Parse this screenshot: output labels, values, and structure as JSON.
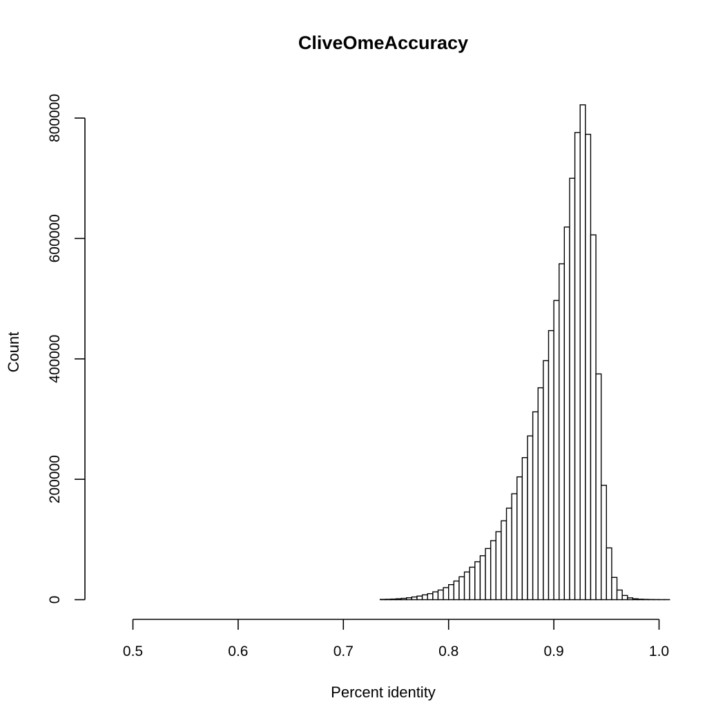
{
  "chart_data": {
    "type": "bar",
    "title": "CliveOmeAccuracy",
    "xlabel": "Percent identity",
    "ylabel": "Count",
    "xlim": [
      0.475,
      1.0
    ],
    "ylim": [
      0,
      820000
    ],
    "x_ticks": [
      0.5,
      0.6,
      0.7,
      0.8,
      0.9,
      1.0
    ],
    "x_tick_labels": [
      "0.5",
      "0.6",
      "0.7",
      "0.8",
      "0.9",
      "1.0"
    ],
    "y_ticks": [
      0,
      200000,
      400000,
      600000,
      800000
    ],
    "y_tick_labels": [
      "0",
      "200000",
      "400000",
      "600000",
      "800000"
    ],
    "bin_width": 0.005,
    "bin_start": 0.475,
    "values": [
      0,
      0,
      0,
      0,
      0,
      0,
      0,
      0,
      0,
      0,
      0,
      0,
      0,
      0,
      0,
      0,
      0,
      0,
      0,
      0,
      0,
      0,
      0,
      0,
      0,
      0,
      0,
      0,
      0,
      0,
      0,
      0,
      0,
      0,
      0,
      0,
      0,
      0,
      0,
      0,
      0,
      0,
      0,
      0,
      0,
      0,
      0,
      0,
      0,
      0,
      0,
      0,
      500,
      700,
      1000,
      1500,
      2200,
      3200,
      4500,
      6000,
      8000,
      10000,
      13000,
      16000,
      20000,
      25000,
      31000,
      38000,
      46000,
      54000,
      63000,
      73000,
      85000,
      98000,
      113000,
      131000,
      152000,
      176000,
      204000,
      236000,
      272000,
      312000,
      352000,
      397000,
      447000,
      497000,
      558000,
      619000,
      700000,
      776000,
      822000,
      773000,
      606000,
      375000,
      190000,
      86000,
      37000,
      16000,
      7000,
      3000,
      1500,
      800,
      500,
      300,
      200,
      100,
      100
    ],
    "grid": false,
    "legend": "none"
  }
}
